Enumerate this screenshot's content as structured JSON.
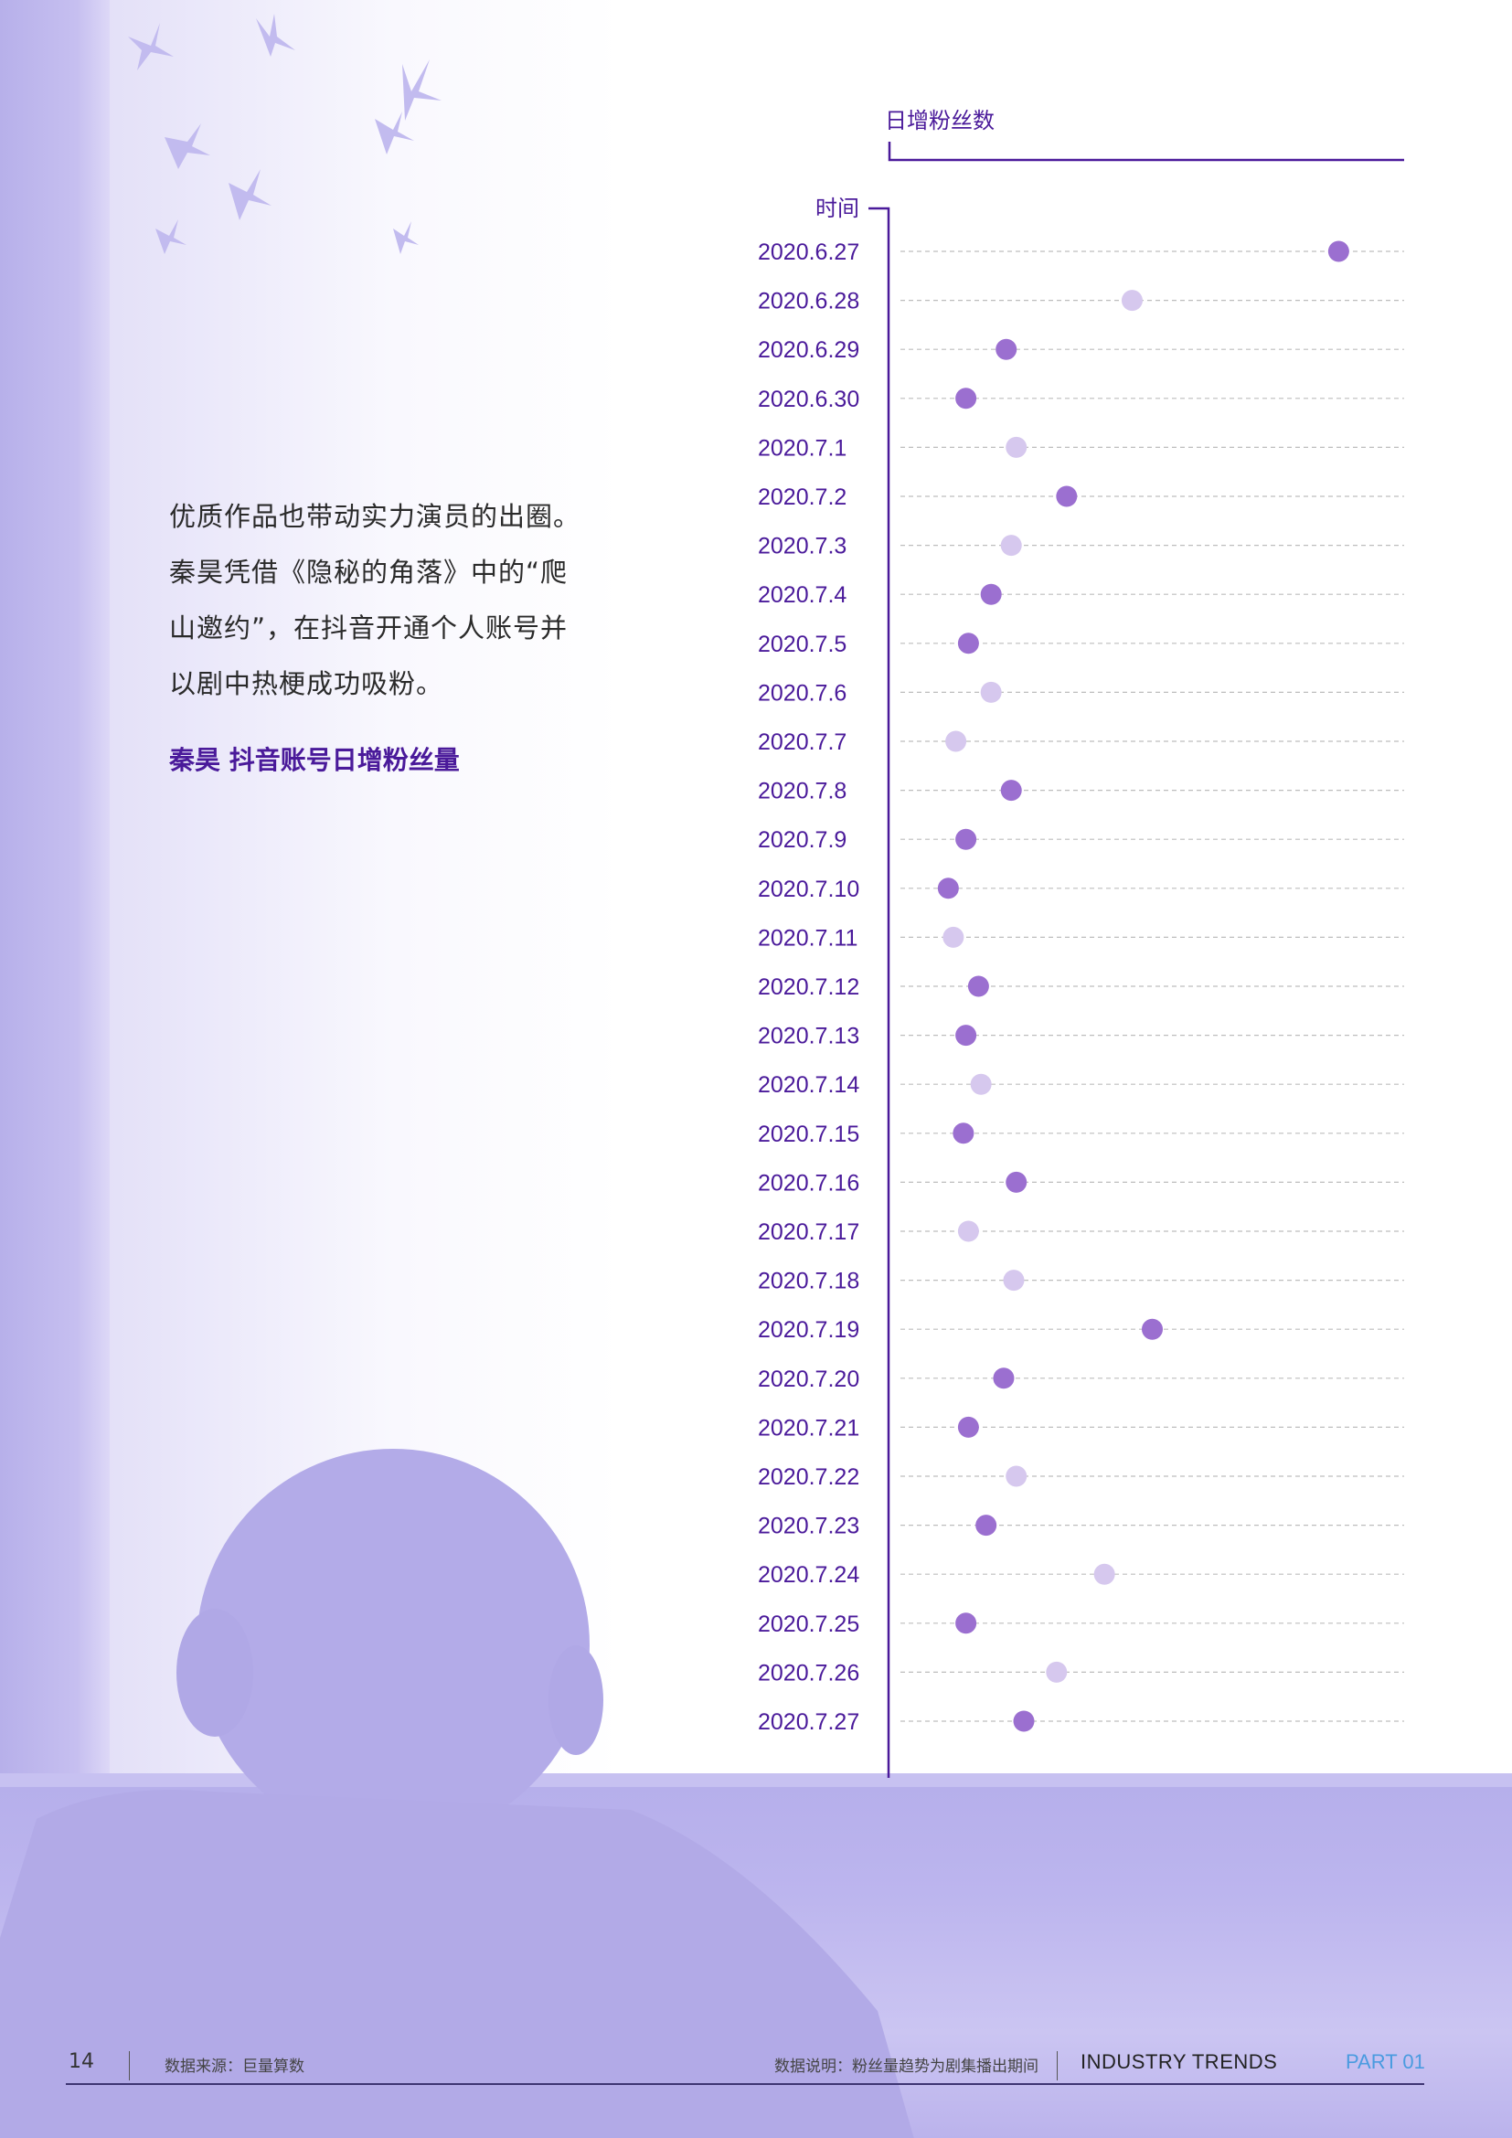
{
  "intro": {
    "lines": [
      "优质作品也带动实力演员的出圈。",
      "秦昊凭借《隐秘的角落》中的“爬",
      "山邀约”，在抖音开通个人账号并",
      "以剧中热梗成功吸粉。"
    ]
  },
  "chart_heading": "秦昊 抖音账号日增粉丝量",
  "colors": {
    "accent": "#4a1a9a",
    "axis": "#4a1a9a",
    "dot_dark": "#9b6fd0",
    "dot_light": "#d6c8ee",
    "gridline": "#bdbdbd",
    "footer_part": "#4a9be0"
  },
  "chart_data": {
    "type": "scatter",
    "orientation": "horizontal",
    "x_axis_title": "日增粉丝数",
    "y_axis_title": "时间",
    "x_tick_labels": false,
    "grid": "dashed horizontal",
    "categories": [
      "2020.6.27",
      "2020.6.28",
      "2020.6.29",
      "2020.6.30",
      "2020.7.1",
      "2020.7.2",
      "2020.7.3",
      "2020.7.4",
      "2020.7.5",
      "2020.7.6",
      "2020.7.7",
      "2020.7.8",
      "2020.7.9",
      "2020.7.10",
      "2020.7.11",
      "2020.7.12",
      "2020.7.13",
      "2020.7.14",
      "2020.7.15",
      "2020.7.16",
      "2020.7.17",
      "2020.7.18",
      "2020.7.19",
      "2020.7.20",
      "2020.7.21",
      "2020.7.22",
      "2020.7.23",
      "2020.7.24",
      "2020.7.25",
      "2020.7.26",
      "2020.7.27"
    ],
    "values": [
      0.87,
      0.46,
      0.21,
      0.13,
      0.23,
      0.33,
      0.22,
      0.18,
      0.135,
      0.18,
      0.11,
      0.22,
      0.13,
      0.095,
      0.105,
      0.155,
      0.13,
      0.16,
      0.125,
      0.23,
      0.135,
      0.225,
      0.5,
      0.205,
      0.135,
      0.23,
      0.17,
      0.405,
      0.13,
      0.31,
      0.245
    ],
    "value_scale": "relative (no tick labels printed)",
    "xlim": [
      0,
      1
    ],
    "dot_shade": [
      "dark",
      "light",
      "dark",
      "dark",
      "light",
      "dark",
      "light",
      "dark",
      "dark",
      "light",
      "light",
      "dark",
      "dark",
      "dark",
      "light",
      "dark",
      "dark",
      "light",
      "dark",
      "dark",
      "light",
      "light",
      "dark",
      "dark",
      "dark",
      "light",
      "dark",
      "light",
      "dark",
      "light",
      "dark"
    ]
  },
  "footer": {
    "page_number": "14",
    "source": "数据来源：巨量算数",
    "note": "数据说明：粉丝量趋势为剧集播出期间",
    "section": "INDUSTRY TRENDS",
    "part": "PART 01"
  }
}
